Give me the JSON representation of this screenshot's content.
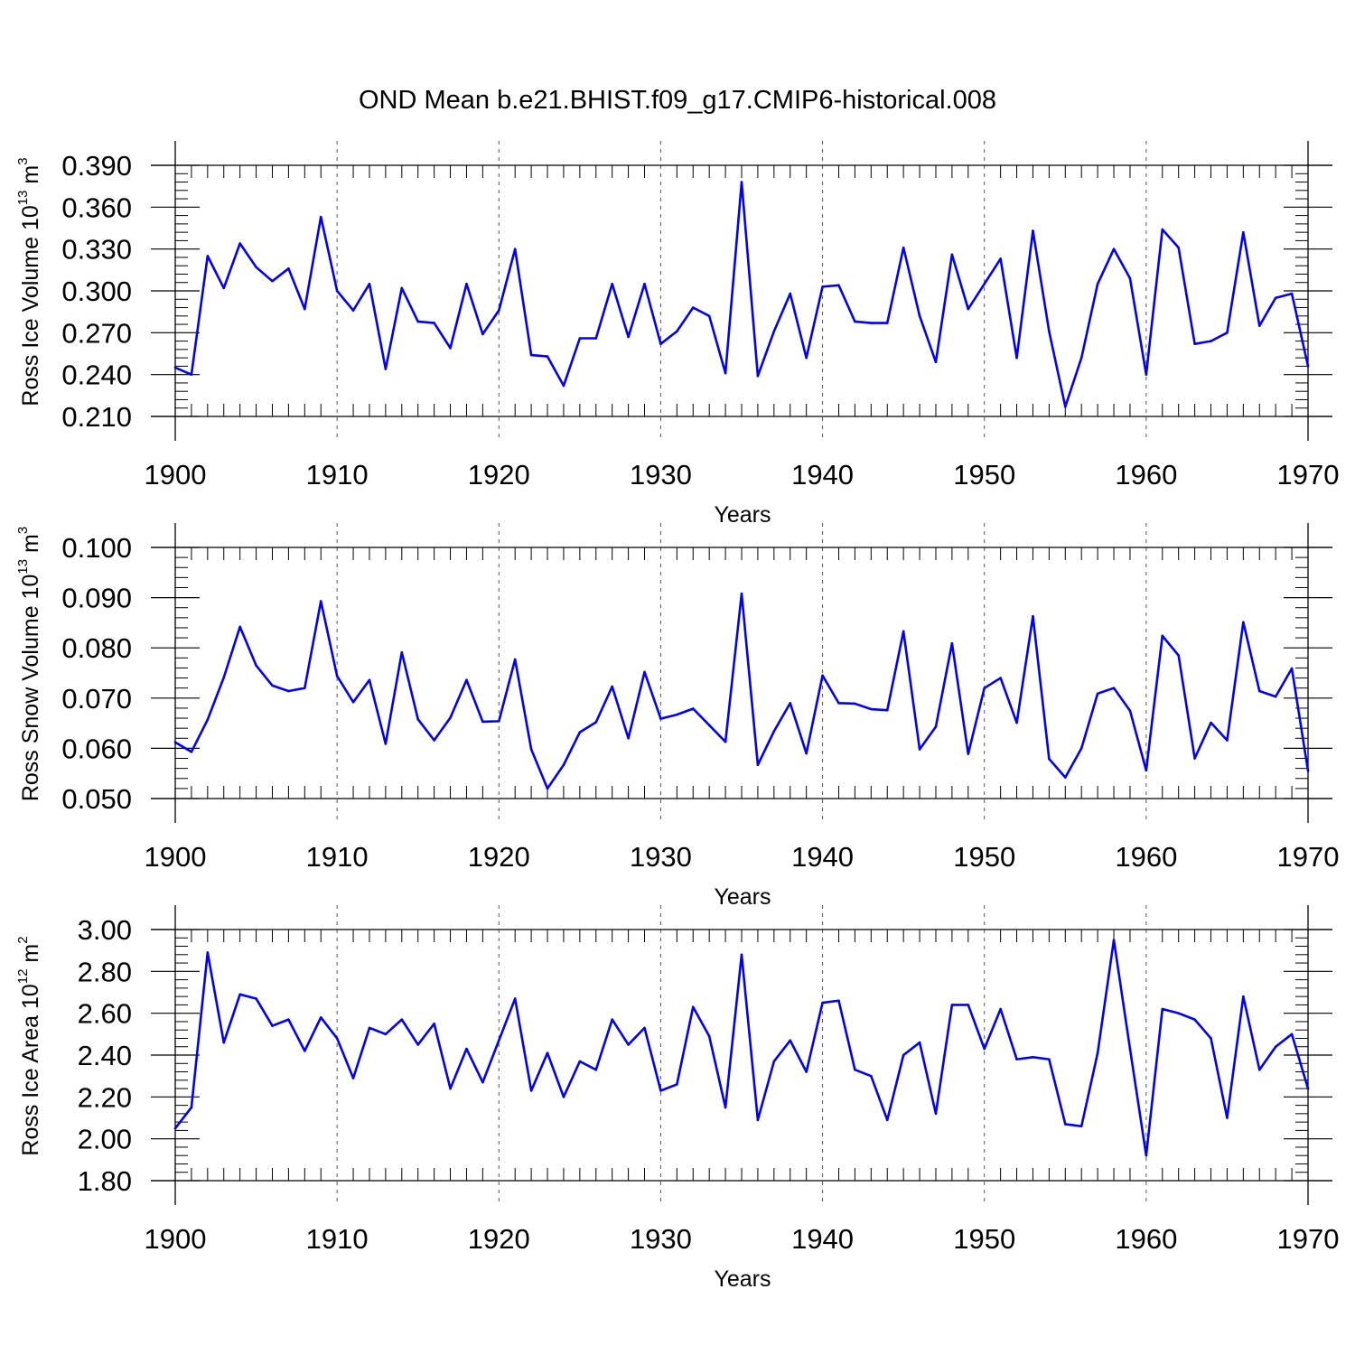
{
  "title": "OND Mean b.e21.BHIST.f09_g17.CMIP6-historical.008",
  "colors": {
    "line": "#0000ff",
    "axis": "#000000",
    "grid": "#555555"
  },
  "chart_data": [
    {
      "type": "line",
      "name": "ice-volume",
      "ylabel_main": "Ross Ice Volume 10",
      "ylabel_exp": "13",
      "ylabel_unit": " m",
      "ylabel_unit_exp": "3",
      "xlabel": "Years",
      "xlim": [
        1900,
        1970
      ],
      "ylim": [
        0.21,
        0.39
      ],
      "yticks": [
        "0.390",
        "0.360",
        "0.330",
        "0.300",
        "0.270",
        "0.240",
        "0.210"
      ],
      "xticks": [
        "1900",
        "1910",
        "1920",
        "1930",
        "1940",
        "1950",
        "1960",
        "1970"
      ],
      "x_start": 1900,
      "values": [
        0.245,
        0.24,
        0.325,
        0.302,
        0.334,
        0.317,
        0.307,
        0.316,
        0.287,
        0.353,
        0.3,
        0.286,
        0.305,
        0.244,
        0.302,
        0.278,
        0.277,
        0.259,
        0.305,
        0.269,
        0.286,
        0.33,
        0.254,
        0.253,
        0.232,
        0.266,
        0.266,
        0.305,
        0.267,
        0.305,
        0.262,
        0.271,
        0.288,
        0.282,
        0.241,
        0.378,
        0.239,
        0.271,
        0.298,
        0.252,
        0.303,
        0.304,
        0.278,
        0.277,
        0.277,
        0.331,
        0.282,
        0.249,
        0.326,
        0.287,
        0.305,
        0.323,
        0.252,
        0.343,
        0.271,
        0.217,
        0.252,
        0.305,
        0.33,
        0.309,
        0.24,
        0.344,
        0.331,
        0.262,
        0.264,
        0.27,
        0.342,
        0.275,
        0.295,
        0.298,
        0.246
      ]
    },
    {
      "type": "line",
      "name": "snow-volume",
      "ylabel_main": "Ross Snow Volume 10",
      "ylabel_exp": "13",
      "ylabel_unit": " m",
      "ylabel_unit_exp": "3",
      "xlabel": "Years",
      "xlim": [
        1900,
        1970
      ],
      "ylim": [
        0.05,
        0.1
      ],
      "yticks": [
        "0.100",
        "0.090",
        "0.080",
        "0.070",
        "0.060",
        "0.050"
      ],
      "xticks": [
        "1900",
        "1910",
        "1920",
        "1930",
        "1940",
        "1950",
        "1960",
        "1970"
      ],
      "x_start": 1900,
      "values": [
        0.0612,
        0.0593,
        0.0657,
        0.0741,
        0.0842,
        0.0765,
        0.0725,
        0.0714,
        0.072,
        0.0893,
        0.0744,
        0.0692,
        0.0736,
        0.0609,
        0.0791,
        0.0658,
        0.0616,
        0.0661,
        0.0736,
        0.0653,
        0.0654,
        0.0777,
        0.0598,
        0.052,
        0.0567,
        0.0632,
        0.0652,
        0.0723,
        0.062,
        0.0752,
        0.0659,
        0.0667,
        0.0679,
        0.0646,
        0.0613,
        0.0908,
        0.0567,
        0.0634,
        0.069,
        0.059,
        0.0745,
        0.069,
        0.0689,
        0.0678,
        0.0676,
        0.0833,
        0.0598,
        0.0643,
        0.0809,
        0.0589,
        0.072,
        0.074,
        0.0651,
        0.0863,
        0.0579,
        0.0542,
        0.06,
        0.0709,
        0.072,
        0.0675,
        0.0556,
        0.0824,
        0.0785,
        0.058,
        0.0651,
        0.0616,
        0.0851,
        0.0714,
        0.0703,
        0.0759,
        0.0555
      ]
    },
    {
      "type": "line",
      "name": "ice-area",
      "ylabel_main": "Ross Ice Area 10",
      "ylabel_exp": "12",
      "ylabel_unit": " m",
      "ylabel_unit_exp": "2",
      "xlabel": "Years",
      "xlim": [
        1900,
        1970
      ],
      "ylim": [
        1.8,
        3.0
      ],
      "yticks": [
        "3.00",
        "2.80",
        "2.60",
        "2.40",
        "2.20",
        "2.00",
        "1.80"
      ],
      "xticks": [
        "1900",
        "1910",
        "1920",
        "1930",
        "1940",
        "1950",
        "1960",
        "1970"
      ],
      "x_start": 1900,
      "values": [
        2.05,
        2.15,
        2.89,
        2.46,
        2.69,
        2.67,
        2.54,
        2.57,
        2.42,
        2.58,
        2.48,
        2.29,
        2.53,
        2.5,
        2.57,
        2.45,
        2.55,
        2.24,
        2.43,
        2.27,
        2.47,
        2.67,
        2.23,
        2.41,
        2.2,
        2.37,
        2.33,
        2.57,
        2.45,
        2.53,
        2.23,
        2.26,
        2.63,
        2.49,
        2.15,
        2.88,
        2.09,
        2.37,
        2.47,
        2.32,
        2.65,
        2.66,
        2.33,
        2.3,
        2.09,
        2.4,
        2.46,
        2.12,
        2.64,
        2.64,
        2.43,
        2.62,
        2.38,
        2.39,
        2.38,
        2.07,
        2.06,
        2.41,
        2.95,
        2.43,
        1.92,
        2.62,
        2.6,
        2.57,
        2.48,
        2.1,
        2.68,
        2.33,
        2.44,
        2.5,
        2.24
      ]
    }
  ]
}
